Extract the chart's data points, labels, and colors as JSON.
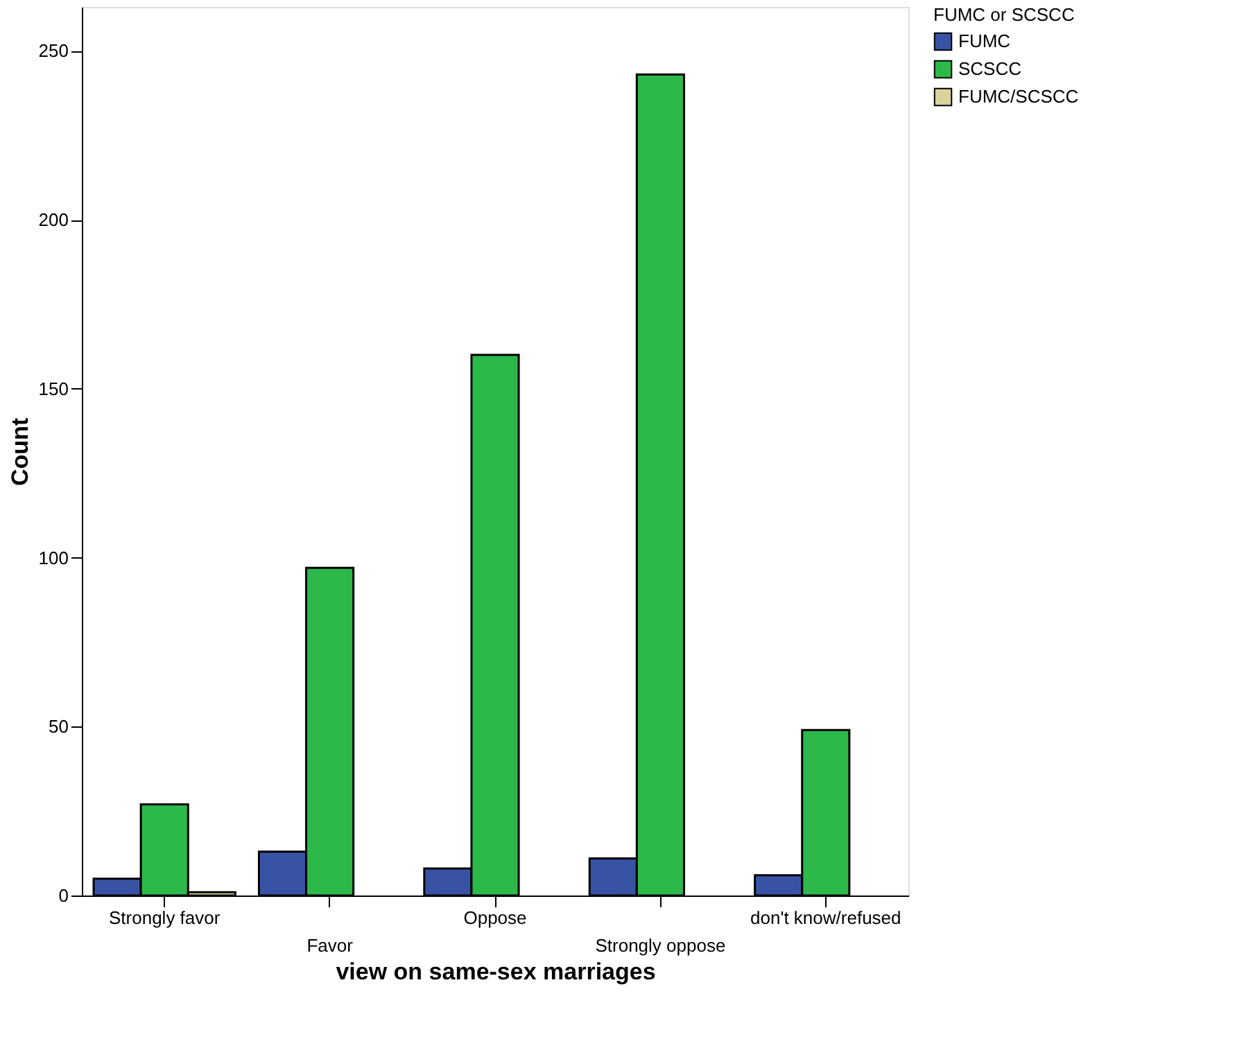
{
  "chart_data": {
    "type": "bar",
    "xlabel": "view on same-sex marriages",
    "ylabel": "Count",
    "legend_title": "FUMC or SCSCC",
    "categories": [
      "Strongly favor",
      "Favor",
      "Oppose",
      "Strongly oppose",
      "don't know/refused"
    ],
    "series": [
      {
        "name": "FUMC",
        "color": "#3953a4",
        "values": [
          5,
          13,
          8,
          11,
          6
        ]
      },
      {
        "name": "SCSCC",
        "color": "#2db84a",
        "values": [
          27,
          97,
          160,
          243,
          49
        ]
      },
      {
        "name": "FUMC/SCSCC",
        "color": "#d8d49c",
        "values": [
          1,
          null,
          null,
          null,
          null
        ]
      }
    ],
    "ylim": [
      0,
      263
    ],
    "yticks": [
      0,
      50,
      100,
      150,
      200,
      250
    ],
    "grid": false,
    "legend": "top right"
  }
}
